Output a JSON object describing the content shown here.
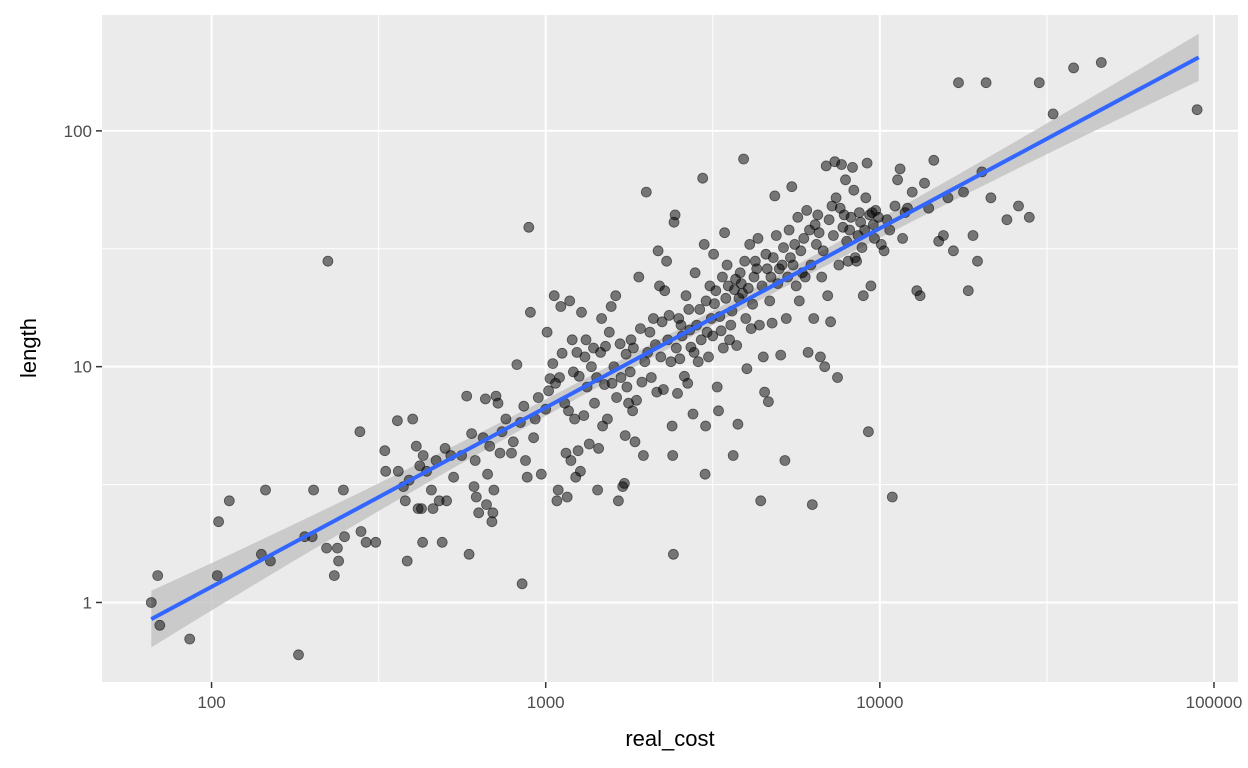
{
  "chart_data": {
    "type": "scatter",
    "title": "",
    "xlabel": "real_cost",
    "ylabel": "length",
    "x_scale": "log10",
    "y_scale": "log10",
    "xlim": [
      47,
      118000
    ],
    "ylim": [
      0.46,
      310
    ],
    "x_ticks": [
      100,
      1000,
      10000,
      100000
    ],
    "x_tick_labels": [
      "100",
      "1000",
      "10000",
      "100000"
    ],
    "y_ticks": [
      1,
      10,
      100
    ],
    "y_tick_labels": [
      "1",
      "10",
      "100"
    ],
    "grid": true,
    "colors": {
      "panel": "#ebebeb",
      "grid": "#ffffff",
      "points": "#000000",
      "fit_line": "#3366ff",
      "confidence_band": "#bfbfbf"
    },
    "trend_line": {
      "method": "linear regression on log scales",
      "points": [
        [
          66,
          0.85
        ],
        [
          90000,
          205
        ]
      ],
      "band_half_width_at_ends": [
        0.12,
        0.1
      ],
      "band_half_width_middle": 0.03
    },
    "points": [
      [
        66,
        1.0
      ],
      [
        69,
        1.3
      ],
      [
        70,
        0.8
      ],
      [
        86,
        0.7
      ],
      [
        104,
        1.3
      ],
      [
        105,
        2.2
      ],
      [
        113,
        2.7
      ],
      [
        141,
        1.6
      ],
      [
        145,
        3.0
      ],
      [
        150,
        1.5
      ],
      [
        182,
        0.6
      ],
      [
        190,
        1.9
      ],
      [
        200,
        1.9
      ],
      [
        202,
        3.0
      ],
      [
        221,
        1.7
      ],
      [
        223,
        28
      ],
      [
        233,
        1.3
      ],
      [
        238,
        1.7
      ],
      [
        240,
        1.5
      ],
      [
        248,
        3.0
      ],
      [
        250,
        1.9
      ],
      [
        278,
        5.3
      ],
      [
        280,
        2.0
      ],
      [
        290,
        1.8
      ],
      [
        310,
        1.8
      ],
      [
        330,
        4.4
      ],
      [
        332,
        3.6
      ],
      [
        360,
        5.9
      ],
      [
        362,
        3.6
      ],
      [
        375,
        3.1
      ],
      [
        380,
        2.7
      ],
      [
        385,
        1.5
      ],
      [
        390,
        3.3
      ],
      [
        400,
        6.0
      ],
      [
        410,
        4.6
      ],
      [
        415,
        2.5
      ],
      [
        420,
        3.8
      ],
      [
        425,
        2.5
      ],
      [
        428,
        1.8
      ],
      [
        430,
        4.2
      ],
      [
        440,
        3.6
      ],
      [
        455,
        3.0
      ],
      [
        460,
        2.5
      ],
      [
        470,
        4.0
      ],
      [
        480,
        2.7
      ],
      [
        490,
        1.8
      ],
      [
        500,
        4.5
      ],
      [
        505,
        2.7
      ],
      [
        520,
        4.2
      ],
      [
        530,
        3.4
      ],
      [
        560,
        4.2
      ],
      [
        580,
        7.5
      ],
      [
        590,
        1.6
      ],
      [
        600,
        5.2
      ],
      [
        610,
        3.1
      ],
      [
        615,
        4.0
      ],
      [
        620,
        2.8
      ],
      [
        630,
        2.4
      ],
      [
        650,
        5.0
      ],
      [
        660,
        7.3
      ],
      [
        665,
        2.6
      ],
      [
        670,
        3.5
      ],
      [
        680,
        4.6
      ],
      [
        690,
        2.2
      ],
      [
        695,
        2.4
      ],
      [
        700,
        3.0
      ],
      [
        710,
        7.5
      ],
      [
        720,
        7.0
      ],
      [
        730,
        4.3
      ],
      [
        740,
        5.3
      ],
      [
        760,
        6.0
      ],
      [
        790,
        4.3
      ],
      [
        800,
        4.8
      ],
      [
        820,
        10.2
      ],
      [
        840,
        5.8
      ],
      [
        850,
        1.2
      ],
      [
        860,
        6.8
      ],
      [
        870,
        4.0
      ],
      [
        880,
        3.4
      ],
      [
        890,
        39
      ],
      [
        900,
        17
      ],
      [
        920,
        5.0
      ],
      [
        930,
        6.0
      ],
      [
        950,
        7.4
      ],
      [
        970,
        3.5
      ],
      [
        1000,
        6.6
      ],
      [
        1010,
        14
      ],
      [
        1020,
        7.9
      ],
      [
        1030,
        8.9
      ],
      [
        1050,
        10.3
      ],
      [
        1060,
        20
      ],
      [
        1070,
        8.5
      ],
      [
        1080,
        2.7
      ],
      [
        1090,
        3.0
      ],
      [
        1100,
        9.0
      ],
      [
        1110,
        18
      ],
      [
        1120,
        11.4
      ],
      [
        1140,
        7.0
      ],
      [
        1150,
        4.3
      ],
      [
        1160,
        2.8
      ],
      [
        1170,
        6.5
      ],
      [
        1180,
        19
      ],
      [
        1190,
        4.0
      ],
      [
        1200,
        13
      ],
      [
        1210,
        9.5
      ],
      [
        1220,
        6.0
      ],
      [
        1230,
        3.4
      ],
      [
        1240,
        11.5
      ],
      [
        1250,
        4.4
      ],
      [
        1260,
        9.1
      ],
      [
        1270,
        3.6
      ],
      [
        1280,
        17
      ],
      [
        1300,
        6.2
      ],
      [
        1310,
        11
      ],
      [
        1320,
        13
      ],
      [
        1330,
        8.2
      ],
      [
        1350,
        4.7
      ],
      [
        1370,
        10
      ],
      [
        1390,
        12
      ],
      [
        1400,
        7.0
      ],
      [
        1420,
        9.0
      ],
      [
        1430,
        3.0
      ],
      [
        1440,
        4.5
      ],
      [
        1460,
        11.5
      ],
      [
        1470,
        16
      ],
      [
        1480,
        5.6
      ],
      [
        1500,
        8.4
      ],
      [
        1510,
        12.2
      ],
      [
        1530,
        6.0
      ],
      [
        1550,
        14
      ],
      [
        1570,
        18
      ],
      [
        1580,
        8.5
      ],
      [
        1600,
        10
      ],
      [
        1620,
        20
      ],
      [
        1630,
        7.4
      ],
      [
        1650,
        2.7
      ],
      [
        1670,
        12.5
      ],
      [
        1680,
        9.0
      ],
      [
        1700,
        3.1
      ],
      [
        1720,
        3.2
      ],
      [
        1730,
        5.1
      ],
      [
        1740,
        11.3
      ],
      [
        1750,
        8.2
      ],
      [
        1770,
        7.0
      ],
      [
        1790,
        9.5
      ],
      [
        1800,
        13
      ],
      [
        1820,
        6.5
      ],
      [
        1830,
        12
      ],
      [
        1850,
        4.8
      ],
      [
        1870,
        7.2
      ],
      [
        1900,
        24
      ],
      [
        1920,
        14.5
      ],
      [
        1940,
        8.6
      ],
      [
        1960,
        4.2
      ],
      [
        1980,
        10.5
      ],
      [
        2000,
        55
      ],
      [
        2020,
        11.5
      ],
      [
        2050,
        14
      ],
      [
        2070,
        9.0
      ],
      [
        2100,
        16
      ],
      [
        2130,
        12.4
      ],
      [
        2150,
        7.8
      ],
      [
        2170,
        31
      ],
      [
        2190,
        22
      ],
      [
        2210,
        11
      ],
      [
        2230,
        15.5
      ],
      [
        2250,
        8.0
      ],
      [
        2270,
        21
      ],
      [
        2300,
        28
      ],
      [
        2320,
        13
      ],
      [
        2340,
        16.5
      ],
      [
        2370,
        10.5
      ],
      [
        2390,
        5.6
      ],
      [
        2400,
        4.2
      ],
      [
        2410,
        1.6
      ],
      [
        2420,
        41
      ],
      [
        2440,
        44
      ],
      [
        2460,
        12
      ],
      [
        2480,
        7.7
      ],
      [
        2500,
        16
      ],
      [
        2520,
        10.8
      ],
      [
        2540,
        15
      ],
      [
        2560,
        13.5
      ],
      [
        2600,
        9.1
      ],
      [
        2630,
        20
      ],
      [
        2660,
        8.5
      ],
      [
        2680,
        17.5
      ],
      [
        2700,
        14.3
      ],
      [
        2720,
        12.1
      ],
      [
        2760,
        6.3
      ],
      [
        2780,
        11.5
      ],
      [
        2800,
        25
      ],
      [
        2830,
        15
      ],
      [
        2860,
        10.5
      ],
      [
        2890,
        17.5
      ],
      [
        2920,
        13
      ],
      [
        2950,
        63
      ],
      [
        2980,
        33
      ],
      [
        3000,
        3.5
      ],
      [
        3010,
        5.6
      ],
      [
        3020,
        19
      ],
      [
        3040,
        14
      ],
      [
        3070,
        11
      ],
      [
        3100,
        22
      ],
      [
        3130,
        16
      ],
      [
        3160,
        13.5
      ],
      [
        3180,
        30
      ],
      [
        3200,
        18.5
      ],
      [
        3230,
        21
      ],
      [
        3260,
        8.2
      ],
      [
        3290,
        6.5
      ],
      [
        3320,
        16.3
      ],
      [
        3350,
        14.2
      ],
      [
        3380,
        24
      ],
      [
        3400,
        12
      ],
      [
        3430,
        37
      ],
      [
        3460,
        19.5
      ],
      [
        3490,
        27
      ],
      [
        3520,
        22
      ],
      [
        3550,
        13
      ],
      [
        3580,
        15
      ],
      [
        3610,
        17.2
      ],
      [
        3640,
        4.2
      ],
      [
        3670,
        21.2
      ],
      [
        3700,
        23.5
      ],
      [
        3730,
        12.3
      ],
      [
        3760,
        5.7
      ],
      [
        3790,
        19.5
      ],
      [
        3820,
        25
      ],
      [
        3850,
        22.5
      ],
      [
        3880,
        20.5
      ],
      [
        3910,
        76
      ],
      [
        3940,
        28
      ],
      [
        3970,
        16
      ],
      [
        4000,
        9.8
      ],
      [
        4040,
        21.5
      ],
      [
        4080,
        33
      ],
      [
        4120,
        14.5
      ],
      [
        4160,
        18.4
      ],
      [
        4200,
        24
      ],
      [
        4240,
        28
      ],
      [
        4280,
        26
      ],
      [
        4320,
        35
      ],
      [
        4360,
        15
      ],
      [
        4400,
        2.7
      ],
      [
        4440,
        22
      ],
      [
        4480,
        11
      ],
      [
        4520,
        7.8
      ],
      [
        4560,
        30
      ],
      [
        4600,
        26
      ],
      [
        4640,
        7.1
      ],
      [
        4680,
        19
      ],
      [
        4720,
        24
      ],
      [
        4760,
        15.3
      ],
      [
        4800,
        29
      ],
      [
        4850,
        53
      ],
      [
        4900,
        36
      ],
      [
        4950,
        22.5
      ],
      [
        5000,
        26
      ],
      [
        5050,
        11.2
      ],
      [
        5100,
        27
      ],
      [
        5150,
        32
      ],
      [
        5200,
        4.0
      ],
      [
        5250,
        16
      ],
      [
        5300,
        24
      ],
      [
        5350,
        38
      ],
      [
        5400,
        29
      ],
      [
        5450,
        58
      ],
      [
        5500,
        27
      ],
      [
        5560,
        33
      ],
      [
        5620,
        22
      ],
      [
        5680,
        43
      ],
      [
        5740,
        19
      ],
      [
        5800,
        31
      ],
      [
        5860,
        25
      ],
      [
        5920,
        35
      ],
      [
        5980,
        24
      ],
      [
        6040,
        46
      ],
      [
        6100,
        11.5
      ],
      [
        6160,
        38
      ],
      [
        6220,
        27
      ],
      [
        6280,
        2.6
      ],
      [
        6340,
        16
      ],
      [
        6400,
        40
      ],
      [
        6460,
        33
      ],
      [
        6520,
        44
      ],
      [
        6580,
        37
      ],
      [
        6640,
        11
      ],
      [
        6700,
        24
      ],
      [
        6770,
        31
      ],
      [
        6840,
        10
      ],
      [
        6910,
        71
      ],
      [
        6980,
        20
      ],
      [
        7050,
        42
      ],
      [
        7120,
        15.5
      ],
      [
        7190,
        48
      ],
      [
        7260,
        36
      ],
      [
        7330,
        74
      ],
      [
        7400,
        52
      ],
      [
        7470,
        9.0
      ],
      [
        7540,
        27
      ],
      [
        7610,
        47
      ],
      [
        7680,
        72
      ],
      [
        7750,
        39
      ],
      [
        7820,
        44
      ],
      [
        7890,
        62
      ],
      [
        7960,
        34
      ],
      [
        8040,
        28
      ],
      [
        8120,
        38
      ],
      [
        8200,
        43
      ],
      [
        8280,
        70
      ],
      [
        8360,
        56
      ],
      [
        8440,
        29
      ],
      [
        8520,
        28
      ],
      [
        8600,
        36
      ],
      [
        8680,
        45
      ],
      [
        8760,
        41
      ],
      [
        8840,
        32
      ],
      [
        8920,
        20
      ],
      [
        9000,
        38
      ],
      [
        9080,
        52
      ],
      [
        9160,
        73
      ],
      [
        9240,
        5.3
      ],
      [
        9320,
        44
      ],
      [
        9400,
        22
      ],
      [
        9480,
        45
      ],
      [
        9560,
        40
      ],
      [
        9640,
        35
      ],
      [
        9720,
        46
      ],
      [
        9900,
        43
      ],
      [
        10100,
        33
      ],
      [
        10300,
        31
      ],
      [
        10500,
        42
      ],
      [
        10700,
        38
      ],
      [
        10900,
        2.8
      ],
      [
        11100,
        48
      ],
      [
        11300,
        62
      ],
      [
        11500,
        69
      ],
      [
        11700,
        35
      ],
      [
        11900,
        45
      ],
      [
        12100,
        47
      ],
      [
        12500,
        55
      ],
      [
        12900,
        21
      ],
      [
        13200,
        20
      ],
      [
        13600,
        60
      ],
      [
        14000,
        47
      ],
      [
        14500,
        75
      ],
      [
        15000,
        34
      ],
      [
        15500,
        36
      ],
      [
        16000,
        52
      ],
      [
        16600,
        31
      ],
      [
        17200,
        160
      ],
      [
        17800,
        55
      ],
      [
        18400,
        21
      ],
      [
        19000,
        36
      ],
      [
        19600,
        28
      ],
      [
        20200,
        67
      ],
      [
        20800,
        160
      ],
      [
        21500,
        52
      ],
      [
        24000,
        42
      ],
      [
        26000,
        48
      ],
      [
        28000,
        43
      ],
      [
        30000,
        160
      ],
      [
        33000,
        118
      ],
      [
        38000,
        185
      ],
      [
        46000,
        195
      ],
      [
        89000,
        123
      ]
    ]
  }
}
